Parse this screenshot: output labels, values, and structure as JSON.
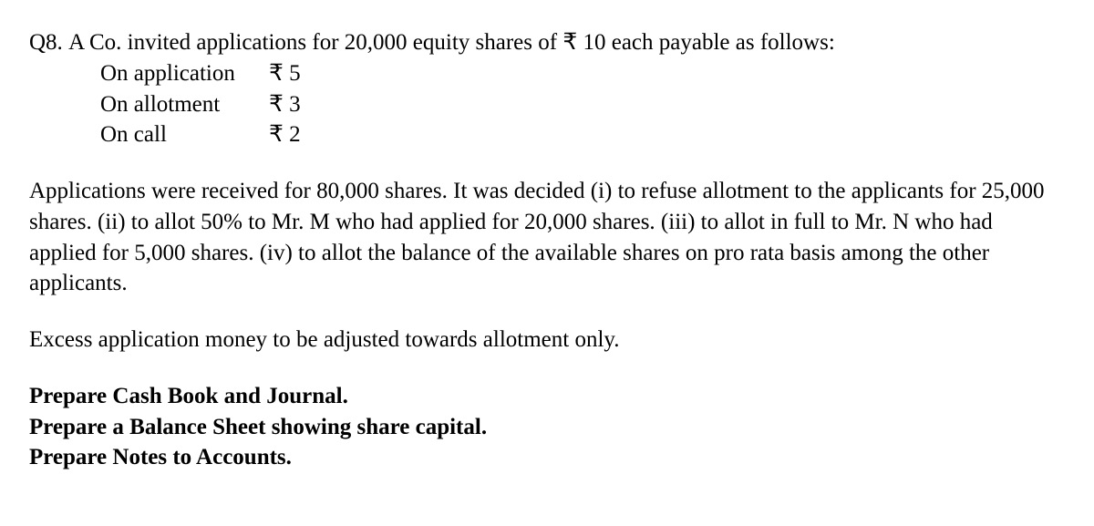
{
  "question": {
    "number": "Q8.",
    "intro": "A Co. invited applications for 20,000 equity shares of ₹ 10 each payable as follows:",
    "payments": [
      {
        "label": "On application",
        "amount": "₹ 5"
      },
      {
        "label": "On allotment",
        "amount": "₹ 3"
      },
      {
        "label": "On call",
        "amount": "₹ 2"
      }
    ],
    "body": "Applications were received for 80,000 shares. It was decided (i) to refuse allotment to the applicants for 25,000 shares. (ii) to allot 50% to Mr. M who had applied for 20,000 shares. (iii) to allot in full to Mr. N who had applied for 5,000 shares. (iv) to allot the balance of the available shares on pro rata basis among the other applicants.",
    "note": "Excess application money to be adjusted towards allotment only.",
    "tasks": [
      "Prepare Cash Book and Journal.",
      "Prepare a Balance Sheet showing share capital.",
      "Prepare Notes to Accounts."
    ]
  }
}
